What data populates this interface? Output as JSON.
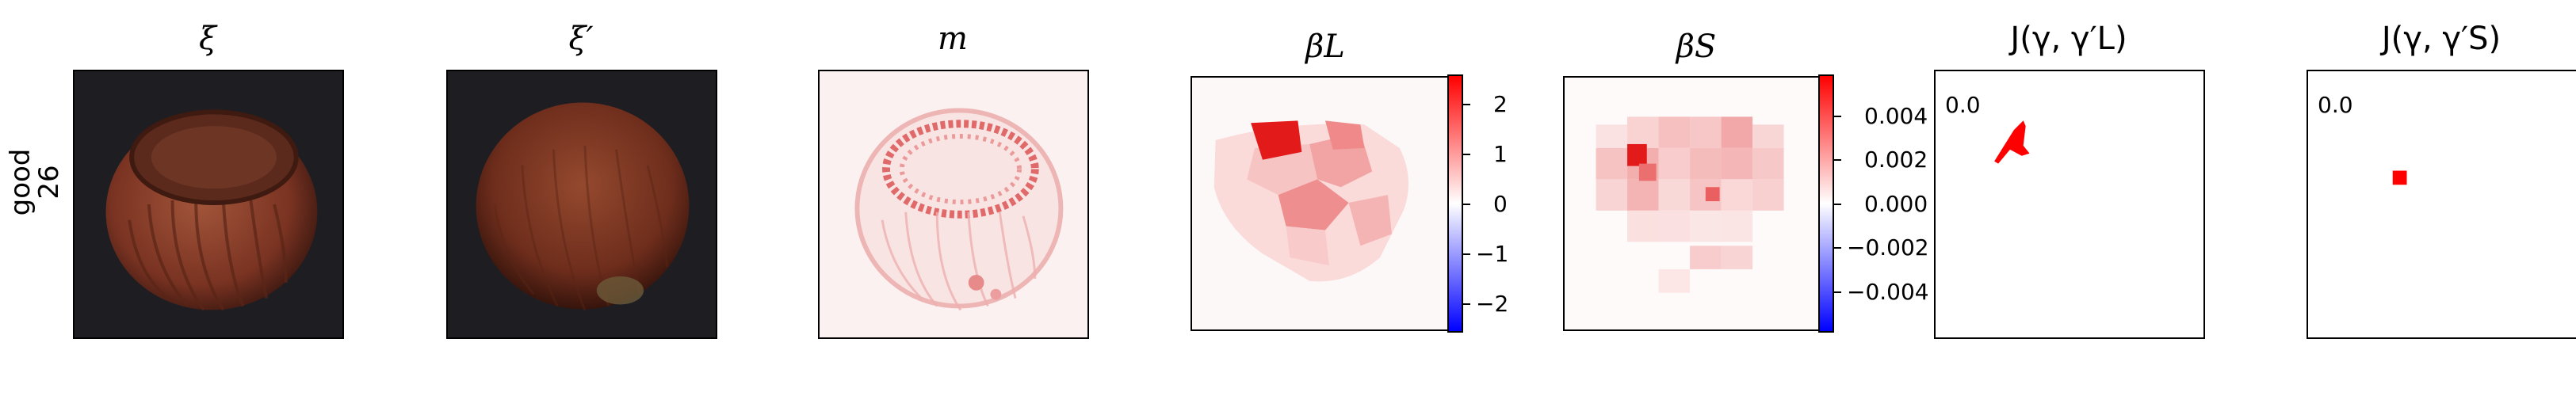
{
  "row_label": {
    "line1": "good",
    "line2": "26"
  },
  "panels": [
    {
      "title": "ξ"
    },
    {
      "title": "ξ′"
    },
    {
      "title": "m"
    },
    {
      "title": "βL"
    },
    {
      "title": "βS"
    },
    {
      "title": "J(γ, γ′L)"
    },
    {
      "title": "J(γ, γ′S)"
    }
  ],
  "colorbar_L": {
    "ticks": [
      "2",
      "1",
      "0",
      "−1",
      "−2"
    ]
  },
  "colorbar_S": {
    "ticks": [
      "0.004",
      "0.002",
      "0.000",
      "−0.002",
      "−0.004"
    ]
  },
  "j_values": {
    "L": "0.0",
    "S": "0.0"
  },
  "colors": {
    "positive": "#ff0000",
    "negative": "#0000ff",
    "background": "#1e1e22",
    "hazelnut": "#8a3e2a"
  }
}
